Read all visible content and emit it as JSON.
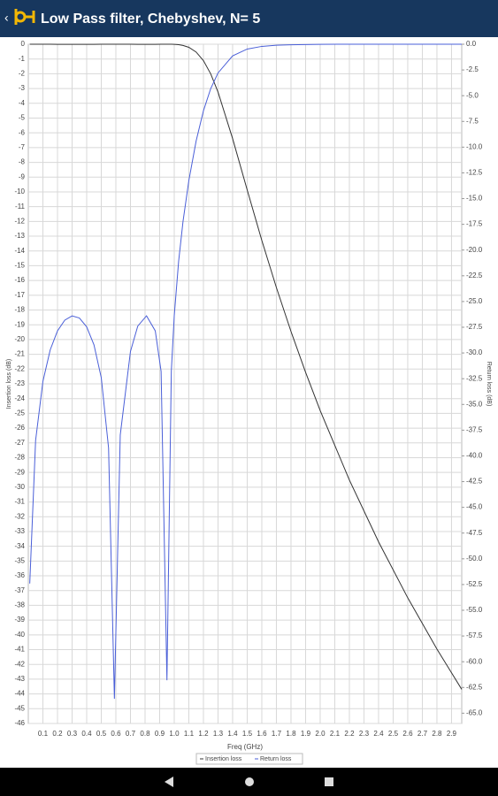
{
  "app_bar": {
    "title": "Low Pass filter, Chebyshev, N= 5"
  },
  "chart_data": {
    "type": "line",
    "x_label": "Freq (GHz)",
    "y_label": "Insertion loss (dB)",
    "y2_label": "Return loss (dB)",
    "x": [
      0.01,
      0.05,
      0.1,
      0.15,
      0.2,
      0.25,
      0.3,
      0.35,
      0.4,
      0.45,
      0.5,
      0.55,
      0.59,
      0.63,
      0.7,
      0.75,
      0.81,
      0.87,
      0.91,
      0.95,
      0.98,
      1.0,
      1.03,
      1.06,
      1.1,
      1.15,
      1.2,
      1.25,
      1.3,
      1.4,
      1.5,
      1.6,
      1.7,
      1.8,
      1.9,
      2.0,
      2.2,
      2.4,
      2.6,
      2.8,
      2.97
    ],
    "series": [
      {
        "name": "Insertion loss",
        "color": "#333333",
        "values": [
          0,
          0,
          0,
          0,
          -0.01,
          -0.01,
          -0.01,
          -0.01,
          -0.01,
          -0.01,
          0,
          0,
          0,
          0,
          0,
          -0.01,
          -0.01,
          -0.01,
          0,
          0,
          0,
          -0.01,
          -0.03,
          -0.08,
          -0.21,
          -0.53,
          -1.11,
          -2.01,
          -3.24,
          -6.39,
          -9.87,
          -13.28,
          -16.48,
          -19.45,
          -22.22,
          -24.81,
          -29.51,
          -33.7,
          -37.49,
          -40.96,
          -43.69
        ]
      },
      {
        "name": "Return loss",
        "color": "#4a5fd8",
        "axis": "y2",
        "values": [
          -52.4,
          -38.5,
          -32.76,
          -29.7,
          -27.85,
          -26.81,
          -26.4,
          -26.6,
          -27.46,
          -29.21,
          -32.4,
          -39.23,
          -63.6,
          -37.98,
          -29.85,
          -27.39,
          -26.39,
          -27.85,
          -31.79,
          -61.8,
          -31.76,
          -26.4,
          -21.1,
          -17.24,
          -13.25,
          -9.4,
          -6.47,
          -4.31,
          -2.79,
          -1.13,
          -0.47,
          -0.21,
          -0.1,
          -0.05,
          -0.03,
          -0.01,
          0,
          0,
          0,
          0,
          0
        ]
      }
    ],
    "xlim": [
      0,
      2.97
    ],
    "xticks": [
      0.1,
      0.2,
      0.3,
      0.4,
      0.5,
      0.6,
      0.7,
      0.8,
      0.9,
      {
        "value": 1,
        "label": "1.0"
      },
      1.1,
      1.2,
      1.3,
      1.4,
      1.5,
      1.6,
      1.7,
      1.8,
      1.9,
      {
        "value": 2,
        "label": "2.0"
      },
      2.1,
      2.2,
      2.3,
      2.4,
      2.5,
      2.6,
      2.7,
      2.8,
      2.9
    ],
    "ylim": [
      0,
      -46
    ],
    "yticks": [
      0,
      -1,
      -2,
      -3,
      -4,
      -5,
      -6,
      -7,
      -8,
      -9,
      -10,
      -11,
      -12,
      -13,
      -14,
      -15,
      -16,
      -17,
      -18,
      -19,
      -20,
      -21,
      -22,
      -23,
      -24,
      -25,
      -26,
      -27,
      -28,
      -29,
      -30,
      -31,
      -32,
      -33,
      -34,
      -35,
      -36,
      -37,
      -38,
      -39,
      -40,
      -41,
      -42,
      -43,
      -44,
      -45,
      -46
    ],
    "y2lim": [
      0,
      -66
    ],
    "y2ticks": [
      {
        "value": 0,
        "label": "0.0"
      },
      -2.5,
      {
        "value": -5,
        "label": "-5.0"
      },
      -7.5,
      {
        "value": -10,
        "label": "-10.0"
      },
      -12.5,
      {
        "value": -15,
        "label": "-15.0"
      },
      -17.5,
      {
        "value": -20,
        "label": "-20.0"
      },
      -22.5,
      {
        "value": -25,
        "label": "-25.0"
      },
      -27.5,
      {
        "value": -30,
        "label": "-30.0"
      },
      -32.5,
      {
        "value": -35,
        "label": "-35.0"
      },
      -37.5,
      {
        "value": -40,
        "label": "-40.0"
      },
      -42.5,
      {
        "value": -45,
        "label": "-45.0"
      },
      -47.5,
      {
        "value": -50,
        "label": "-50.0"
      },
      -52.5,
      {
        "value": -55,
        "label": "-55.0"
      },
      -57.5,
      {
        "value": -60,
        "label": "-60.0"
      },
      -62.5,
      {
        "value": -65,
        "label": "-65.0"
      }
    ],
    "grid": true,
    "legend": "bottom"
  }
}
